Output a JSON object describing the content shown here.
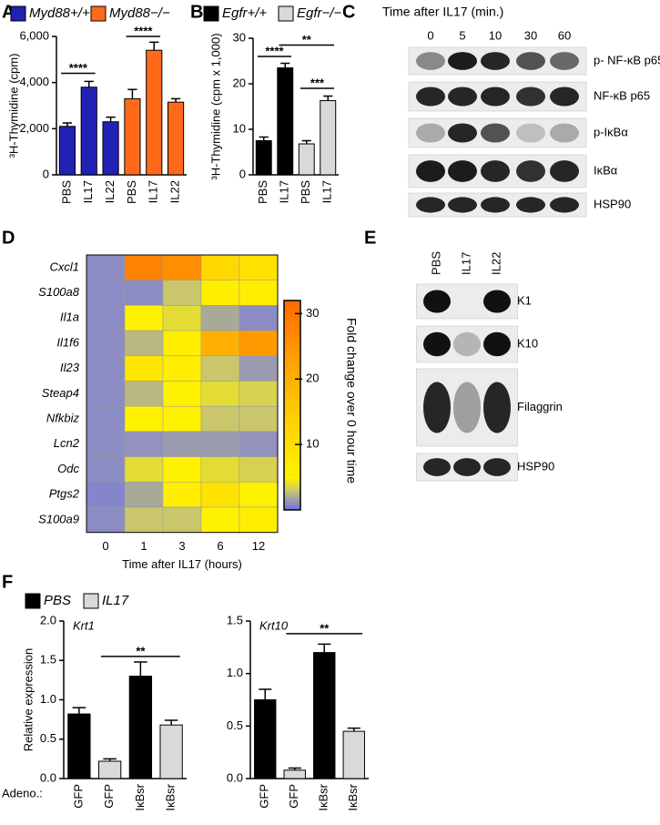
{
  "panels": [
    "A",
    "B",
    "C",
    "D",
    "E",
    "F"
  ],
  "chart_data": [
    {
      "type": "bar",
      "ylabel": "³H-Thymidine (cpm)",
      "categories": [
        "PBS",
        "IL17",
        "IL22",
        "PBS",
        "IL17",
        "IL22"
      ],
      "series": [
        {
          "name": "Myd88+/+",
          "color": "#2121b4",
          "values": [
            2100,
            3800,
            2300,
            null,
            null,
            null
          ],
          "errors": [
            150,
            250,
            200,
            null,
            null,
            null
          ]
        },
        {
          "name": "Myd88−/−",
          "color": "#ff6a1a",
          "values": [
            null,
            null,
            null,
            3300,
            5400,
            3150
          ],
          "errors": [
            null,
            null,
            null,
            400,
            350,
            150
          ]
        }
      ],
      "ylim": [
        0,
        6000
      ],
      "yticks": [
        0,
        {
          "value": 2000,
          "label": "2,000"
        },
        {
          "value": 4000,
          "label": "4,000"
        },
        {
          "value": 6000,
          "label": "6,000"
        }
      ],
      "annotations": [
        "****",
        "****"
      ]
    },
    {
      "type": "bar",
      "ylabel": "³H-Thymidine (cpm x 1,000)",
      "categories": [
        "PBS",
        "IL17",
        "PBS",
        "IL17"
      ],
      "series": [
        {
          "name": "Egfr+/+",
          "color": "#000000",
          "values": [
            7.5,
            23.5,
            null,
            null
          ],
          "errors": [
            0.8,
            1,
            null,
            null
          ]
        },
        {
          "name": "Egfr−/−",
          "color": "#d9d9d9",
          "values": [
            null,
            null,
            6.8,
            16.3
          ],
          "errors": [
            null,
            null,
            0.7,
            1
          ]
        }
      ],
      "ylim": [
        0,
        30
      ],
      "yticks": [
        0,
        10,
        20,
        30
      ],
      "annotations": [
        "****",
        "**",
        "***"
      ]
    },
    {
      "type": "heatmap",
      "xlabel": "Time after IL17 (hours)",
      "x": [
        0,
        1,
        3,
        6,
        12
      ],
      "y": [
        "Cxcl1",
        "S100a8",
        "Il1a",
        "Il1f6",
        "Il23",
        "Steap4",
        "Nfkbiz",
        "Lcn2",
        "Odc",
        "Ptgs2",
        "S100a9"
      ],
      "z": [
        [
          1,
          28,
          26,
          12,
          9
        ],
        [
          1,
          1,
          3,
          6,
          6
        ],
        [
          1,
          5,
          4,
          2,
          1
        ],
        [
          1,
          2.5,
          6,
          20,
          24
        ],
        [
          1,
          8,
          6,
          3,
          1.5
        ],
        [
          1,
          2.5,
          5,
          4,
          3.5
        ],
        [
          1,
          5,
          5,
          3,
          3
        ],
        [
          1,
          1.2,
          1.5,
          1.5,
          1.2
        ],
        [
          1,
          4,
          5,
          4,
          3.5
        ],
        [
          0.8,
          2,
          6,
          9,
          5
        ],
        [
          1,
          3,
          3,
          5,
          6
        ]
      ],
      "zlim": [
        0,
        32
      ],
      "zticks": [
        10,
        20,
        30
      ],
      "colorbar_label": "Fold change over 0 hour time",
      "colorscale": [
        [
          0,
          "#6a6ae6"
        ],
        [
          1,
          "#8c8cc4"
        ],
        [
          2,
          "#a9a99a"
        ],
        [
          3,
          "#c9c66c"
        ],
        [
          5,
          "#fff200"
        ],
        [
          14,
          "#ffd000"
        ],
        [
          24,
          "#ff9a00"
        ],
        [
          32,
          "#ff6a00"
        ]
      ]
    },
    {
      "type": "bar",
      "title": "Krt1",
      "ylabel": "Relative expression",
      "categories": [
        "GFP",
        "GFP",
        "IκBsr",
        "IκBsr"
      ],
      "series": [
        {
          "name": "PBS",
          "color": "#000000",
          "values": [
            0.82,
            null,
            1.3,
            null
          ],
          "errors": [
            0.08,
            null,
            0.18,
            null
          ]
        },
        {
          "name": "IL17",
          "color": "#d9d9d9",
          "values": [
            null,
            0.22,
            null,
            0.68
          ],
          "errors": [
            null,
            0.03,
            null,
            0.06
          ]
        }
      ],
      "ylim": [
        0,
        2
      ],
      "yticks": [
        {
          "value": 0,
          "label": "0.0"
        },
        0.5,
        {
          "value": 1,
          "label": "1.0"
        },
        1.5,
        {
          "value": 2,
          "label": "2.0"
        }
      ],
      "annotations": [
        "**"
      ]
    },
    {
      "type": "bar",
      "title": "Krt10",
      "categories": [
        "GFP",
        "GFP",
        "IκBsr",
        "IκBsr"
      ],
      "series": [
        {
          "color": "#000000",
          "values": [
            0.75,
            null,
            1.2,
            null
          ],
          "errors": [
            0.1,
            null,
            0.08,
            null
          ]
        },
        {
          "color": "#d9d9d9",
          "values": [
            null,
            0.08,
            null,
            0.45
          ],
          "errors": [
            null,
            0.02,
            null,
            0.03
          ]
        }
      ],
      "ylim": [
        0,
        1.5
      ],
      "yticks": [
        {
          "value": 0,
          "label": "0.0"
        },
        0.5,
        {
          "value": 1,
          "label": "1.0"
        },
        1.5
      ],
      "annotations": [
        "**"
      ]
    }
  ],
  "blot_c": {
    "title": "Time after IL17 (min.)",
    "lanes": [
      "0",
      "5",
      "10",
      "30",
      "60"
    ],
    "rows": [
      "p- NF-κB p65",
      "NF-κB p65",
      "p-IκBα",
      "IκBα",
      "HSP90"
    ]
  },
  "blot_e": {
    "lanes": [
      "PBS",
      "IL17",
      "IL22"
    ],
    "rows": [
      "K1",
      "K10",
      "Filaggrin",
      "HSP90"
    ]
  },
  "adeno_label": "Adeno.:"
}
